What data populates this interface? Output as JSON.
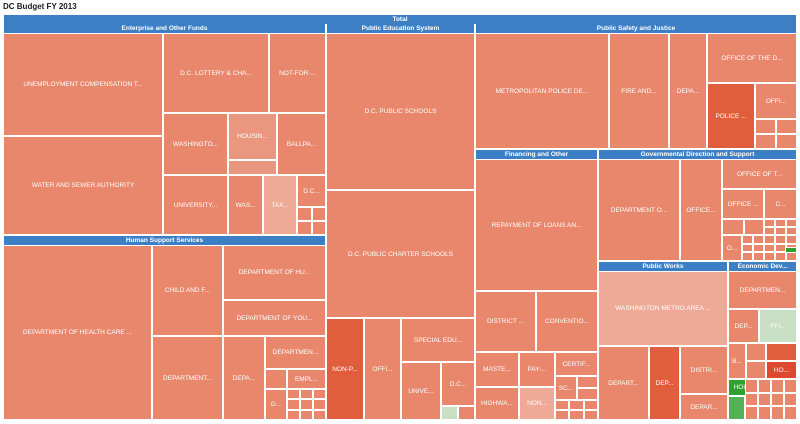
{
  "chart_data": {
    "type": "treemap",
    "title": "DC Budget FY 2013",
    "root": "Total",
    "colors": {
      "header": "#3d7fc4",
      "base": "#e8876c",
      "dark": "#e15e3d",
      "light": "#eeaa96",
      "green": "#2fa12f",
      "lightgreen": "#c9dfc3"
    },
    "groups": [
      {
        "name": "Enterprise and Other Funds",
        "items": [
          {
            "label": "UNEMPLOYMENT COMPENSATION T..."
          },
          {
            "label": "WATER AND SEWER AUTHORITY"
          },
          {
            "label": "D.C. LOTTERY & CHA..."
          },
          {
            "label": "NOT-FOR-..."
          },
          {
            "label": "WASHINGTO..."
          },
          {
            "label": "HOUSIN..."
          },
          {
            "label": "BALLPA..."
          },
          {
            "label": "UNIVERSITY..."
          },
          {
            "label": "WAS..."
          },
          {
            "label": "TAX..."
          },
          {
            "label": "D.C..."
          }
        ]
      },
      {
        "name": "Public Education System",
        "items": [
          {
            "label": "D.C. PUBLIC SCHOOLS"
          },
          {
            "label": "D.C. PUBLIC CHARTER SCHOOLS"
          },
          {
            "label": "NON-P..."
          },
          {
            "label": "OFFI..."
          },
          {
            "label": "SPECIAL EDU..."
          },
          {
            "label": "UNIVE..."
          },
          {
            "label": "D.C..."
          }
        ]
      },
      {
        "name": "Public Safety and Justice",
        "items": [
          {
            "label": "METROPOLITAN POLICE DE..."
          },
          {
            "label": "FIRE AND..."
          },
          {
            "label": "DEPA..."
          },
          {
            "label": "OFFICE OF THE D..."
          },
          {
            "label": "POLICE ..."
          },
          {
            "label": "OFFI..."
          }
        ]
      },
      {
        "name": "Human Support Services",
        "items": [
          {
            "label": "DEPARTMENT OF HEALTH CARE ..."
          },
          {
            "label": "CHILD AND F..."
          },
          {
            "label": "DEPARTMENT OF HU..."
          },
          {
            "label": "DEPARTMENT OF YOU..."
          },
          {
            "label": "DEPARTMENT..."
          },
          {
            "label": "DEPA..."
          },
          {
            "label": "DEPARTMEN..."
          },
          {
            "label": "EMPL..."
          },
          {
            "label": "D..."
          }
        ]
      },
      {
        "name": "Financing and Other",
        "items": [
          {
            "label": "REPAYMENT OF LOANS AN..."
          },
          {
            "label": "DISTRICT ..."
          },
          {
            "label": "CONVENTIO..."
          },
          {
            "label": "MASTE..."
          },
          {
            "label": "PAY-..."
          },
          {
            "label": "CERTIF..."
          },
          {
            "label": "HIGHWA..."
          },
          {
            "label": "NON..."
          },
          {
            "label": "SC..."
          }
        ]
      },
      {
        "name": "Governmental Direction and Support",
        "items": [
          {
            "label": "DEPARTMENT O..."
          },
          {
            "label": "OFFICE..."
          },
          {
            "label": "OFFICE OF T..."
          },
          {
            "label": "OFFICE ..."
          },
          {
            "label": "C..."
          },
          {
            "label": "O..."
          }
        ]
      },
      {
        "name": "Public Works",
        "items": [
          {
            "label": "WASHINGTON METRO AREA ..."
          },
          {
            "label": "DEPART..."
          },
          {
            "label": "DEP..."
          },
          {
            "label": "DISTRI..."
          },
          {
            "label": "DEPAR..."
          }
        ]
      },
      {
        "name": "Economic Dev...",
        "items": [
          {
            "label": "DEPARTMEN..."
          },
          {
            "label": "DEP..."
          },
          {
            "label": "FFI..."
          },
          {
            "label": "B..."
          },
          {
            "label": "HO..."
          },
          {
            "label": "HOU..."
          }
        ]
      }
    ]
  }
}
